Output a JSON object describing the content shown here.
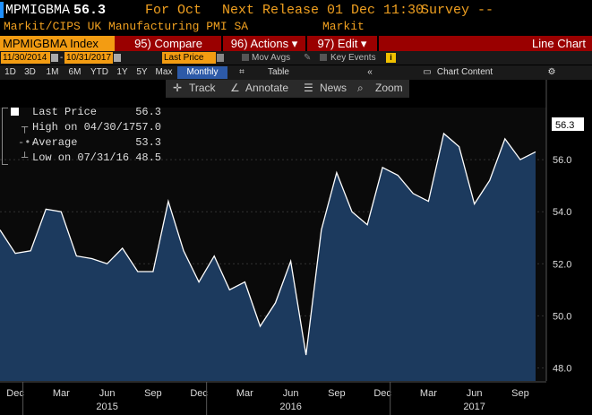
{
  "header": {
    "ticker": "MPMIGBMA",
    "value": "56.3",
    "for_label": "For Oct",
    "next_release": "Next Release 01 Dec 11:30",
    "survey": "Survey --",
    "description": "Markit/CIPS UK Manufacturing PMI SA",
    "source": "Markit"
  },
  "command_bar": {
    "index": "MPMIGBMA Index",
    "compare": "95) Compare",
    "actions": "96) Actions ▾",
    "edit": "97) Edit ▾",
    "view": "Line Chart"
  },
  "settings_bar": {
    "start_date": "11/30/2014",
    "end_date": "10/31/2017",
    "field": "Last Price",
    "mov_avgs": "Mov Avgs",
    "key_events": "Key Events",
    "chart_content": "Chart Content"
  },
  "periods": [
    "1D",
    "3D",
    "1M",
    "6M",
    "YTD",
    "1Y",
    "5Y",
    "Max"
  ],
  "frequency": "Monthly",
  "table_label": "Table",
  "tools": {
    "track": "Track",
    "annotate": "Annotate",
    "news": "News",
    "zoom": "Zoom"
  },
  "legend": [
    {
      "key": "Last Price",
      "value": "56.3"
    },
    {
      "key": "High on 04/30/17",
      "value": "57.0"
    },
    {
      "key": "Average",
      "value": "53.3"
    },
    {
      "key": "Low on 07/31/16",
      "value": "48.5"
    }
  ],
  "colors": {
    "accent": "#f39c12",
    "command_bar": "#9a0000",
    "line": "#ffffff",
    "area": "#1c3a5e"
  },
  "chart_data": {
    "type": "area",
    "title": "",
    "xlabel": "",
    "ylabel": "",
    "ylim": [
      47.5,
      58.0
    ],
    "yticks": [
      "48.0",
      "50.0",
      "52.0",
      "54.0",
      "56.0"
    ],
    "x_month_labels": [
      "Dec",
      "Mar",
      "Jun",
      "Sep",
      "Dec",
      "Mar",
      "Jun",
      "Sep",
      "Dec",
      "Mar",
      "Jun",
      "Sep"
    ],
    "x_year_labels": [
      "2015",
      "2016",
      "2017"
    ],
    "last_value_label": "56.3",
    "x": [
      "2014-11",
      "2014-12",
      "2015-01",
      "2015-02",
      "2015-03",
      "2015-04",
      "2015-05",
      "2015-06",
      "2015-07",
      "2015-08",
      "2015-09",
      "2015-10",
      "2015-11",
      "2015-12",
      "2016-01",
      "2016-02",
      "2016-03",
      "2016-04",
      "2016-05",
      "2016-06",
      "2016-07",
      "2016-08",
      "2016-09",
      "2016-10",
      "2016-11",
      "2016-12",
      "2017-01",
      "2017-02",
      "2017-03",
      "2017-04",
      "2017-05",
      "2017-06",
      "2017-07",
      "2017-08",
      "2017-09",
      "2017-10"
    ],
    "series": [
      {
        "values": [
          53.3,
          52.4,
          52.5,
          54.1,
          54.0,
          52.3,
          52.2,
          52.0,
          52.6,
          51.7,
          51.7,
          54.4,
          52.5,
          51.3,
          52.3,
          51.0,
          51.3,
          49.6,
          50.5,
          52.1,
          48.5,
          53.3,
          55.5,
          54.0,
          53.5,
          55.7,
          55.4,
          54.7,
          54.4,
          57.0,
          56.5,
          54.3,
          55.2,
          56.8,
          56.0,
          56.3
        ]
      }
    ]
  }
}
